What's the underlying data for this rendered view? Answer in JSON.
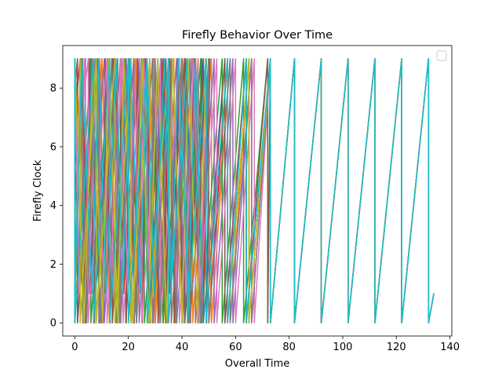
{
  "chart_data": {
    "type": "line",
    "title": "Firefly Behavior Over Time",
    "xlabel": "Overall Time",
    "ylabel": "Firefly Clock",
    "xlim": [
      -4.5,
      140.7
    ],
    "ylim": [
      -0.45,
      9.45
    ],
    "xticks": [
      0,
      20,
      40,
      60,
      80,
      100,
      120,
      140
    ],
    "yticks": [
      0,
      2,
      4,
      6,
      8
    ],
    "grid": false,
    "legend": {
      "placement": "top-right",
      "entries": []
    },
    "clock_period": 10,
    "clock_max": 9,
    "sync_start_time": 73,
    "synced_flash_times": [
      73,
      82,
      92,
      102,
      112,
      122,
      132
    ],
    "end_time": 134,
    "end_value": 1,
    "series_colors": [
      "#1f77b4",
      "#ff7f0e",
      "#2ca02c",
      "#d62728",
      "#9467bd",
      "#8c564b",
      "#e377c2",
      "#7f7f7f",
      "#bcbd22",
      "#17becf"
    ],
    "series": [
      {
        "color": "#1f77b4",
        "reset_times": [
          1,
          8,
          14,
          21,
          28,
          34,
          41,
          48,
          56,
          64,
          73
        ],
        "start_value": 3
      },
      {
        "color": "#ff7f0e",
        "reset_times": [
          3,
          10,
          16,
          23,
          30,
          37,
          44,
          51,
          58,
          65,
          73
        ],
        "start_value": 6
      },
      {
        "color": "#2ca02c",
        "reset_times": [
          0,
          6,
          13,
          19,
          26,
          33,
          40,
          47,
          55,
          63,
          72
        ],
        "start_value": 1
      },
      {
        "color": "#d62728",
        "reset_times": [
          2,
          9,
          15,
          22,
          29,
          36,
          43,
          50,
          57,
          65,
          73
        ],
        "start_value": 7
      },
      {
        "color": "#9467bd",
        "reset_times": [
          4,
          11,
          17,
          24,
          31,
          38,
          45,
          52,
          59,
          66,
          73
        ],
        "start_value": 4
      },
      {
        "color": "#8c564b",
        "reset_times": [
          1,
          7,
          14,
          20,
          27,
          34,
          41,
          49,
          56,
          64,
          72
        ],
        "start_value": 8
      },
      {
        "color": "#e377c2",
        "reset_times": [
          5,
          12,
          18,
          25,
          32,
          39,
          46,
          53,
          60,
          67,
          73
        ],
        "start_value": 5
      },
      {
        "color": "#7f7f7f",
        "reset_times": [
          3,
          9,
          16,
          22,
          29,
          36,
          43,
          50,
          58,
          66,
          73
        ],
        "start_value": 2
      },
      {
        "color": "#bcbd22",
        "reset_times": [
          2,
          8,
          15,
          21,
          28,
          35,
          42,
          49,
          57,
          65,
          73
        ],
        "start_value": 0
      },
      {
        "color": "#17becf",
        "reset_times": [
          0,
          7,
          13,
          20,
          27,
          35,
          42,
          49,
          57,
          64,
          73
        ],
        "start_value": 1
      }
    ]
  }
}
